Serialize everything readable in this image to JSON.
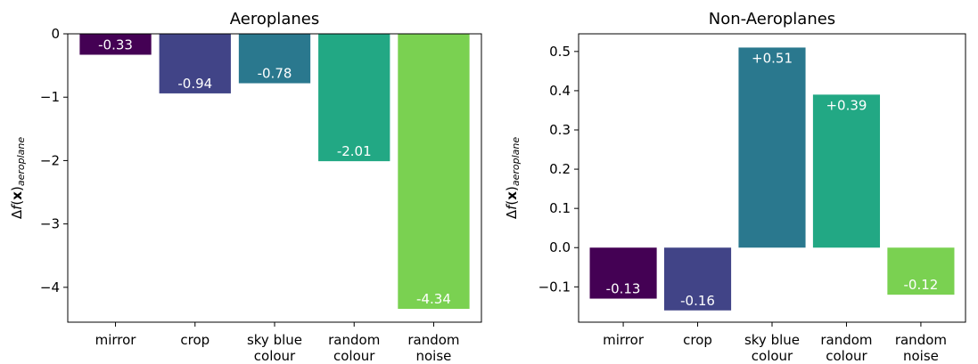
{
  "ylabel": {
    "delta": "Δ",
    "f": "f",
    "open": "(",
    "x": "x",
    "close": ")",
    "sub": "aeroplane"
  },
  "chart_data": [
    {
      "type": "bar",
      "title": "Aeroplanes",
      "categories": [
        [
          "mirror"
        ],
        [
          "crop"
        ],
        [
          "sky blue",
          "colour"
        ],
        [
          "random",
          "colour"
        ],
        [
          "random",
          "noise"
        ]
      ],
      "values": [
        -0.33,
        -0.94,
        -0.78,
        -2.01,
        -4.34
      ],
      "value_labels": [
        "-0.33",
        "-0.94",
        "-0.78",
        "-2.01",
        "-4.34"
      ],
      "colors": [
        "#440154",
        "#414487",
        "#2a788e",
        "#22a884",
        "#7ad151"
      ],
      "ylim": [
        -4.55,
        0
      ],
      "yticks": [
        0,
        -1,
        -2,
        -3,
        -4
      ],
      "ytick_labels": [
        "0",
        "−1",
        "−2",
        "−3",
        "−4"
      ],
      "grid": false
    },
    {
      "type": "bar",
      "title": "Non-Aeroplanes",
      "categories": [
        [
          "mirror"
        ],
        [
          "crop"
        ],
        [
          "sky blue",
          "colour"
        ],
        [
          "random",
          "colour"
        ],
        [
          "random",
          "noise"
        ]
      ],
      "values": [
        -0.13,
        -0.16,
        0.51,
        0.39,
        -0.12
      ],
      "value_labels": [
        "-0.13",
        "-0.16",
        "+0.51",
        "+0.39",
        "-0.12"
      ],
      "colors": [
        "#440154",
        "#414487",
        "#2a788e",
        "#22a884",
        "#7ad151"
      ],
      "ylim": [
        -0.19,
        0.545
      ],
      "yticks": [
        0.5,
        0.4,
        0.3,
        0.2,
        0.1,
        0.0,
        -0.1
      ],
      "ytick_labels": [
        "0.5",
        "0.4",
        "0.3",
        "0.2",
        "0.1",
        "0.0",
        "−0.1"
      ],
      "grid": false
    }
  ]
}
